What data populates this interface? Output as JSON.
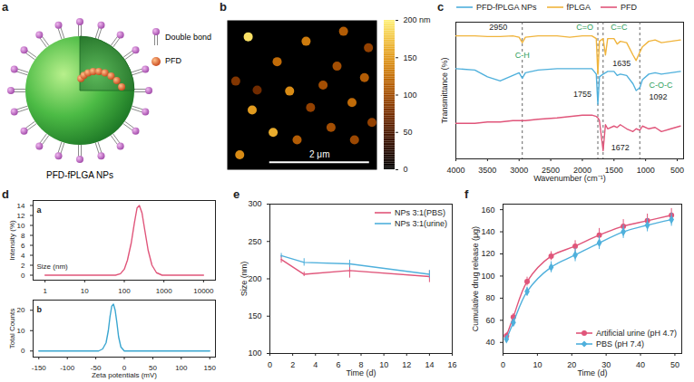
{
  "chart_data": [
    {
      "panel": "a",
      "type": "diagram",
      "title": "PFD-fPLGA NPs",
      "labels": [
        "Double bond",
        "PFD"
      ]
    },
    {
      "panel": "b",
      "type": "image",
      "xlim": [
        0,
        3
      ],
      "ylim": [
        0,
        3
      ],
      "tick_labels": false,
      "particles": {
        "x": [
          0.42,
          1.58,
          2.33,
          2.83,
          1.0,
          2.2,
          0.17,
          1.25,
          1.92,
          2.75,
          0.5,
          1.67,
          2.5,
          0.92,
          2.08,
          2.9,
          0.25,
          0.6,
          1.4,
          2.55
        ],
        "y": [
          2.67,
          2.58,
          2.78,
          2.45,
          2.17,
          2.08,
          1.78,
          1.58,
          1.7,
          1.85,
          1.2,
          1.25,
          1.35,
          0.75,
          0.85,
          0.95,
          0.3,
          1.6,
          0.6,
          0.6
        ],
        "height": [
          190,
          130,
          110,
          90,
          120,
          100,
          80,
          140,
          100,
          110,
          150,
          90,
          120,
          160,
          100,
          90,
          140,
          70,
          110,
          95
        ]
      },
      "scale_bar": {
        "length": 2,
        "label": "2 μm"
      },
      "colorbar": {
        "range": [
          0,
          200
        ],
        "ticks": [
          0,
          50,
          100,
          150,
          {
            "value": 200,
            "label": "200 nm"
          }
        ]
      }
    },
    {
      "panel": "c",
      "type": "line",
      "xlabel": "Wavenumber (cm⁻¹)",
      "ylabel": "Transmittance (%)",
      "xlim": [
        4000,
        400
      ],
      "xticks": [
        4000,
        3500,
        3000,
        2500,
        2000,
        1500,
        1000,
        500
      ],
      "ylim": [
        0,
        100
      ],
      "tick_labels": "x",
      "legend": "top",
      "x": [
        4000,
        3700,
        3500,
        3300,
        3100,
        3000,
        2950,
        2900,
        2700,
        2400,
        2200,
        2000,
        1850,
        1780,
        1755,
        1730,
        1672,
        1635,
        1600,
        1500,
        1450,
        1400,
        1300,
        1200,
        1150,
        1092,
        1050,
        950,
        850,
        750,
        600,
        450
      ],
      "series": [
        {
          "name": "PFD-fPLGA NPs",
          "color": "#4fb0dc",
          "values": [
            66,
            65,
            60,
            57,
            61,
            63,
            59,
            63,
            65,
            66,
            66,
            66,
            66,
            62,
            40,
            60,
            62,
            63,
            64,
            64,
            61,
            62,
            61,
            55,
            50,
            52,
            58,
            62,
            63,
            62,
            63,
            64
          ]
        },
        {
          "name": "fPLGA",
          "color": "#f0b43c",
          "values": [
            90,
            90,
            89.5,
            89.5,
            90,
            89,
            85,
            89,
            90,
            90,
            89,
            90,
            90,
            88,
            62,
            86,
            88,
            76,
            88,
            88,
            84,
            86,
            85,
            76,
            72,
            78,
            82,
            86,
            87,
            85,
            86,
            87
          ]
        },
        {
          "name": "PFD",
          "color": "#e0557a",
          "values": [
            26,
            26,
            27,
            27,
            28,
            28,
            28,
            28,
            29,
            30,
            31,
            32,
            32,
            31,
            30,
            28,
            6,
            25,
            22,
            24,
            23,
            25,
            22,
            20,
            22,
            21,
            24,
            22,
            23,
            20,
            22,
            24
          ]
        }
      ],
      "reference_lines": {
        "x": [
          2950,
          1755,
          1672,
          1092
        ],
        "line_style": "dashed"
      },
      "annotations": [
        {
          "text": "C-H",
          "x": 2950,
          "y": 76,
          "color": "#2e9e5b"
        },
        {
          "text": "2950",
          "x": 3330,
          "y": 96,
          "color": "#222222"
        },
        {
          "text": "C=O",
          "x": 1960,
          "y": 96,
          "color": "#2e9e5b"
        },
        {
          "text": "1755",
          "x": 2000,
          "y": 47,
          "color": "#222222"
        },
        {
          "text": "C=C",
          "x": 1420,
          "y": 96,
          "color": "#2e9e5b"
        },
        {
          "text": "1635",
          "x": 1380,
          "y": 70,
          "color": "#222222"
        },
        {
          "text": "1672",
          "x": 1400,
          "y": 8,
          "color": "#222222"
        },
        {
          "text": "C-O-C",
          "x": 760,
          "y": 54,
          "color": "#2e9e5b"
        },
        {
          "text": "1092",
          "x": 800,
          "y": 45,
          "color": "#222222"
        }
      ]
    },
    {
      "panel": "d",
      "subplots": [
        {
          "panel": "a",
          "type": "line",
          "annotation": "Size (nm)",
          "ylabel": "Intensity (%)",
          "log": "x",
          "xlim": [
            0.5,
            20000
          ],
          "xticks": [
            1,
            10,
            100,
            1000,
            10000
          ],
          "ylim": [
            -1,
            15
          ],
          "yticks": [
            0,
            2,
            4,
            6,
            8,
            10,
            12,
            14
          ],
          "series": [
            {
              "color": "#e0557a",
              "x": [
                1,
                60,
                80,
                100,
                120,
                150,
                180,
                210,
                240,
                280,
                330,
                400,
                500,
                650,
                900,
                10000
              ],
              "values": [
                0,
                0,
                0.3,
                1.2,
                3,
                6.5,
                10.5,
                13.5,
                14,
                12.5,
                9,
                5,
                2,
                0.5,
                0,
                0
              ]
            }
          ]
        },
        {
          "panel": "b",
          "type": "line",
          "xlabel": "Zeta potentials (mV)",
          "ylabel": "Total Counts",
          "xlim": [
            -160,
            160
          ],
          "xticks": [
            -150,
            -100,
            -50,
            0,
            50,
            100,
            150
          ],
          "ylim": [
            -3,
            25
          ],
          "yticks": [
            0,
            10,
            20
          ],
          "series": [
            {
              "color": "#3aa6d0",
              "x": [
                -150,
                -45,
                -38,
                -32,
                -28,
                -25,
                -22,
                -19,
                -16,
                -13,
                -10,
                -6,
                0,
                150
              ],
              "values": [
                0,
                0,
                1,
                4,
                10,
                17,
                22,
                23,
                20,
                14,
                7,
                2,
                0,
                0
              ]
            }
          ]
        }
      ]
    },
    {
      "panel": "e",
      "type": "line",
      "xlabel": "Time (d)",
      "ylabel": "Size (nm)",
      "xlim": [
        0,
        16
      ],
      "xticks": [
        0,
        2,
        4,
        6,
        8,
        10,
        12,
        14,
        16
      ],
      "ylim": [
        100,
        300
      ],
      "yticks": [
        100,
        150,
        200,
        250,
        300
      ],
      "legend": "top-right",
      "x": [
        1,
        3,
        7,
        14
      ],
      "series": [
        {
          "name": "NPs 3:1(PBS)",
          "color": "#e0557a",
          "values": [
            226,
            206,
            211,
            203
          ],
          "errors": [
            5,
            3,
            10,
            8
          ]
        },
        {
          "name": "NPs 3:1(urine)",
          "color": "#4fb0dc",
          "values": [
            231,
            222,
            220,
            206
          ],
          "errors": [
            3,
            5,
            5,
            5
          ]
        }
      ]
    },
    {
      "panel": "f",
      "type": "line",
      "xlabel": "Time (d)",
      "ylabel": "Cumulative drug release (μg)",
      "xlim": [
        0,
        52
      ],
      "xticks": [
        0,
        10,
        20,
        30,
        40,
        50
      ],
      "ylim": [
        30,
        165
      ],
      "yticks": [
        40,
        60,
        80,
        100,
        120,
        140,
        160
      ],
      "legend": "bottom-right",
      "x": [
        1,
        3,
        7,
        14,
        21,
        28,
        35,
        42,
        49
      ],
      "series": [
        {
          "name": "Artificial urine (pH 4.7)",
          "color": "#e0557a",
          "marker": "circle",
          "values": [
            46,
            63,
            95,
            118,
            127,
            137,
            145,
            150,
            155
          ],
          "errors": [
            3,
            3,
            4,
            4,
            5,
            6,
            6,
            6,
            6
          ]
        },
        {
          "name": "PBS (pH 7.4)",
          "color": "#4fb0dc",
          "marker": "diamond",
          "values": [
            43,
            58,
            86,
            108,
            119,
            130,
            140,
            146,
            151
          ],
          "errors": [
            3,
            3,
            4,
            5,
            6,
            6,
            6,
            6,
            6
          ]
        }
      ]
    }
  ]
}
